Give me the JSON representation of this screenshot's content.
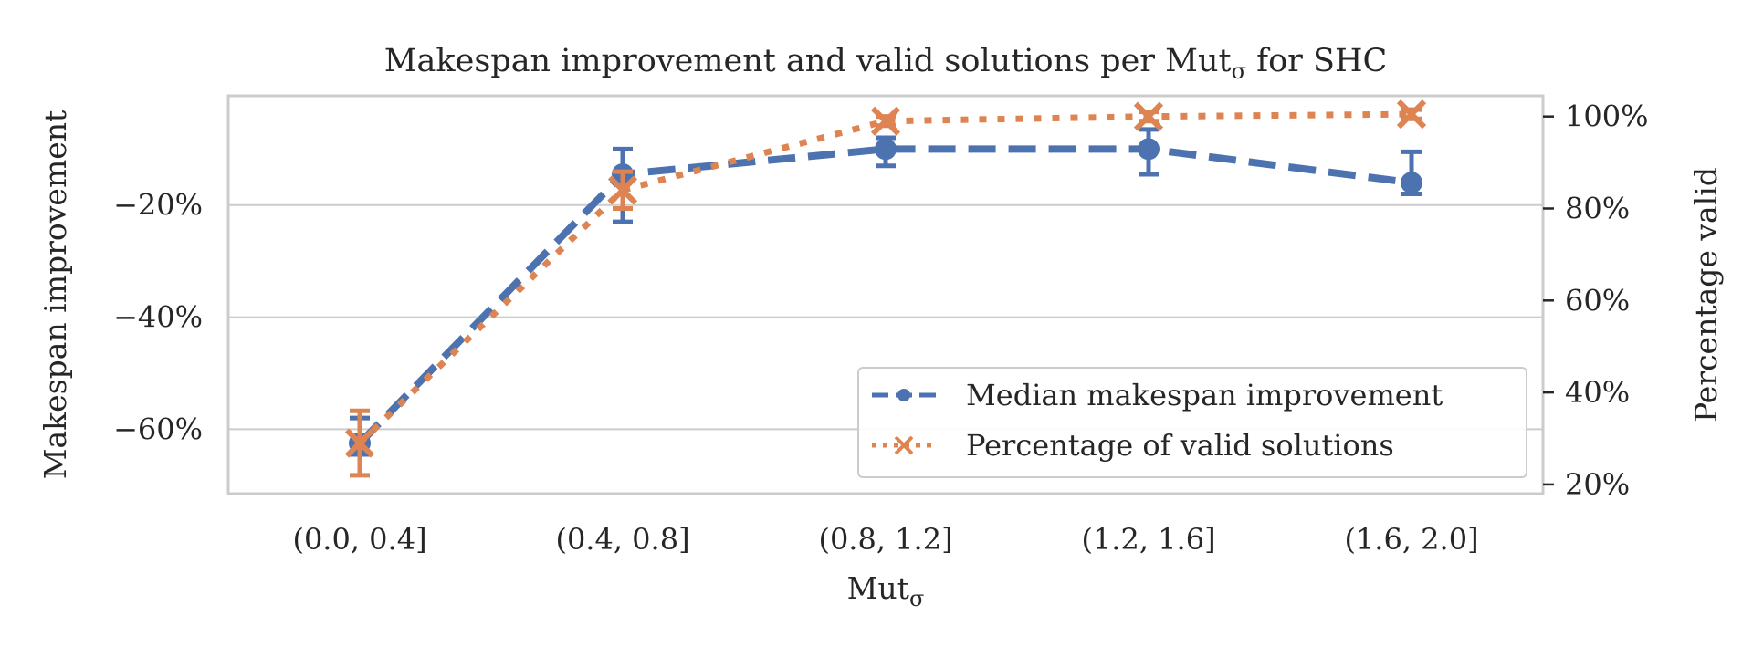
{
  "chart_data": {
    "type": "line",
    "title_prefix": "Makespan improvement and valid solutions per Mut",
    "title_sub": "σ",
    "title_suffix": " for SHC",
    "xlabel_main": "Mut",
    "xlabel_sub": "σ",
    "ylabel_left": "Makespan improvement",
    "ylabel_right": "Percentage valid",
    "categories": [
      "(0.0, 0.4]",
      "(0.4, 0.8]",
      "(0.8, 1.2]",
      "(1.2, 1.6]",
      "(1.6, 2.0]"
    ],
    "left_axis": {
      "ylim": [
        -71.5,
        -0.5
      ],
      "ticks": [
        -20,
        -40,
        -60
      ],
      "tick_labels": [
        "−20%",
        "−40%",
        "−60%"
      ]
    },
    "right_axis": {
      "ylim": [
        18,
        104.5
      ],
      "ticks": [
        100,
        80,
        60,
        40,
        20
      ],
      "tick_labels": [
        "100%",
        "80%",
        "60%",
        "40%",
        "20%"
      ]
    },
    "series": [
      {
        "name": "Median makespan improvement",
        "axis": "left",
        "color": "#4c72b0",
        "values": [
          -62.5,
          -14.5,
          -10.0,
          -10.0,
          -16.0
        ],
        "err_low": [
          -64.5,
          -23.0,
          -13.0,
          -14.5,
          -18.0
        ],
        "err_high": [
          -58.0,
          -10.0,
          -8.0,
          -6.5,
          -10.5
        ]
      },
      {
        "name": "Percentage of valid solutions",
        "axis": "right",
        "color": "#dd8452",
        "values": [
          29.0,
          84.0,
          99.0,
          100.0,
          100.5
        ],
        "err_low": [
          22.0,
          80.0,
          98.0,
          99.0,
          99.5
        ],
        "err_high": [
          36.0,
          88.0,
          100.0,
          101.0,
          101.5
        ]
      }
    ],
    "grid": true,
    "legend_position": "lower-right"
  }
}
